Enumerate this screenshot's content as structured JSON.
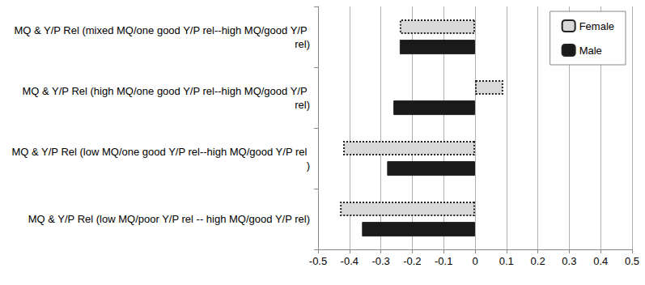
{
  "chart_data": {
    "type": "bar",
    "orientation": "horizontal",
    "categories": [
      "MQ & Y/P Rel (mixed MQ/one good Y/P rel--high MQ/good Y/P rel)",
      "MQ & Y/P Rel (high MQ/one good Y/P rel--high MQ/good Y/P rel)",
      "MQ & Y/P Rel (low MQ/one good Y/P rel--high MQ/good Y/P rel )",
      "MQ & Y/P Rel (low MQ/poor Y/P rel -- high MQ/good Y/P rel)"
    ],
    "series": [
      {
        "name": "Female",
        "color": "#d9d9d9",
        "line_style": "dotted",
        "values": [
          -0.24,
          0.09,
          -0.42,
          -0.43
        ]
      },
      {
        "name": "Male",
        "color": "#1a1a1a",
        "line_style": "solid",
        "values": [
          -0.24,
          -0.26,
          -0.28,
          -0.36
        ]
      }
    ],
    "xlim": [
      -0.5,
      0.5
    ],
    "xticks": [
      -0.5,
      -0.4,
      -0.3,
      -0.2,
      -0.1,
      0,
      0.1,
      0.2,
      0.3,
      0.4,
      0.5
    ],
    "grid": true,
    "legend": "top-right"
  }
}
